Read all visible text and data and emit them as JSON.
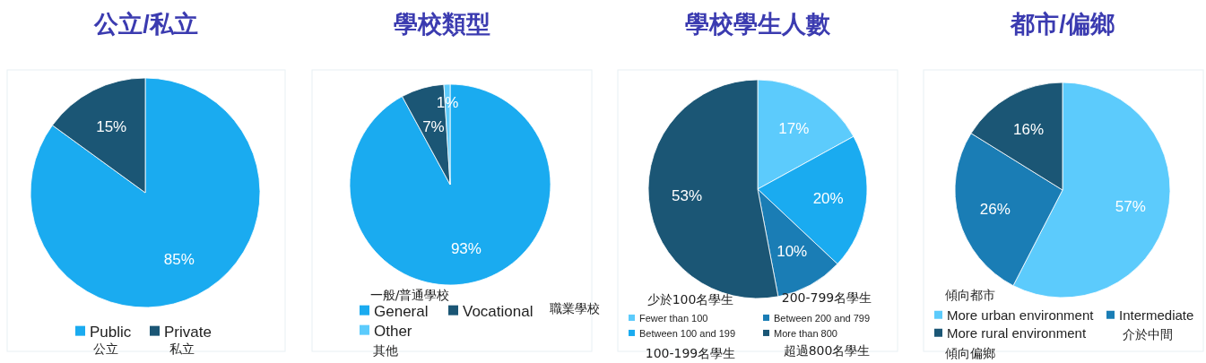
{
  "chart_data": [
    {
      "type": "pie",
      "title": "公立/私立",
      "categories": [
        "Public",
        "Private"
      ],
      "values": [
        85,
        15
      ],
      "colors": [
        "#1aabf0",
        "#1b5675"
      ],
      "value_labels": [
        "85%",
        "15%"
      ],
      "legend": "bottom",
      "annotations": [
        "公立",
        "私立"
      ]
    },
    {
      "type": "pie",
      "title": "學校類型",
      "categories": [
        "General",
        "Vocational",
        "Other"
      ],
      "values": [
        93,
        7,
        1
      ],
      "colors": [
        "#1aabf0",
        "#1b5675",
        "#5ccbfc"
      ],
      "value_labels": [
        "93%",
        "7%",
        "1%"
      ],
      "legend": "bottom",
      "annotations": [
        "一般/普通學校",
        "職業學校",
        "其他"
      ]
    },
    {
      "type": "pie",
      "title": "學校學生人數",
      "categories": [
        "Fewer than 100",
        "Between 100 and 199",
        "Between 200 and 799",
        "More than 800"
      ],
      "values": [
        17,
        20,
        10,
        53
      ],
      "colors": [
        "#5ccbfc",
        "#1aabf0",
        "#1a7db5",
        "#1b5675"
      ],
      "value_labels": [
        "17%",
        "20%",
        "10%",
        "53%"
      ],
      "legend": "bottom",
      "annotations": [
        "少於100名學生",
        "100-199名學生",
        "200-799名學生",
        "超過800名學生"
      ]
    },
    {
      "type": "pie",
      "title": "都市/偏鄉",
      "categories": [
        "More urban environment",
        "Intermediate",
        "More rural environment"
      ],
      "values": [
        57,
        26,
        16
      ],
      "colors": [
        "#5ccbfc",
        "#1a7db5",
        "#1b5675"
      ],
      "value_labels": [
        "57%",
        "26%",
        "16%"
      ],
      "legend": "bottom",
      "annotations": [
        "傾向都市",
        "介於中間",
        "傾向偏鄉"
      ]
    }
  ]
}
